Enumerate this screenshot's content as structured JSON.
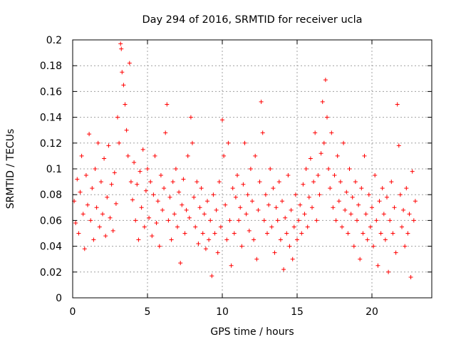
{
  "chart_data": {
    "type": "scatter",
    "title": "Day 294 of 2016, SRMTID for receiver ucla",
    "xlabel": "GPS time / hours",
    "ylabel": "SRMTID / TECUs",
    "xlim": [
      0,
      24
    ],
    "ylim": [
      0,
      0.2
    ],
    "x_ticks": [
      0,
      5,
      10,
      15,
      20
    ],
    "x_tick_labels": [
      "0",
      "5",
      "10",
      "15",
      "20"
    ],
    "y_ticks": [
      0,
      0.02,
      0.04,
      0.06,
      0.08,
      0.1,
      0.12,
      0.14,
      0.16,
      0.18,
      0.2
    ],
    "y_tick_labels": [
      "0",
      "0.02",
      "0.04",
      "0.06",
      "0.08",
      "0.1",
      "0.12",
      "0.14",
      "0.16",
      "0.18",
      "0.2"
    ],
    "grid": true,
    "legend": "none",
    "marker": "plus",
    "series_color": "#ff0000",
    "series": [
      {
        "points": [
          [
            0.1,
            0.075
          ],
          [
            0.2,
            0.058
          ],
          [
            0.3,
            0.092
          ],
          [
            0.4,
            0.05
          ],
          [
            0.5,
            0.082
          ],
          [
            0.6,
            0.11
          ],
          [
            0.7,
            0.065
          ],
          [
            0.8,
            0.038
          ],
          [
            0.9,
            0.095
          ],
          [
            1.0,
            0.072
          ],
          [
            1.1,
            0.127
          ],
          [
            1.2,
            0.06
          ],
          [
            1.3,
            0.085
          ],
          [
            1.4,
            0.045
          ],
          [
            1.5,
            0.1
          ],
          [
            1.6,
            0.07
          ],
          [
            1.7,
            0.12
          ],
          [
            1.8,
            0.055
          ],
          [
            1.9,
            0.09
          ],
          [
            2.0,
            0.065
          ],
          [
            2.1,
            0.108
          ],
          [
            2.2,
            0.048
          ],
          [
            2.3,
            0.078
          ],
          [
            2.4,
            0.118
          ],
          [
            2.5,
            0.062
          ],
          [
            2.6,
            0.088
          ],
          [
            2.7,
            0.052
          ],
          [
            2.8,
            0.097
          ],
          [
            2.9,
            0.073
          ],
          [
            3.0,
            0.14
          ],
          [
            3.1,
            0.12
          ],
          [
            3.2,
            0.197
          ],
          [
            3.25,
            0.193
          ],
          [
            3.3,
            0.175
          ],
          [
            3.4,
            0.165
          ],
          [
            3.5,
            0.15
          ],
          [
            3.6,
            0.13
          ],
          [
            3.7,
            0.11
          ],
          [
            3.8,
            0.182
          ],
          [
            3.9,
            0.09
          ],
          [
            4.0,
            0.076
          ],
          [
            4.1,
            0.105
          ],
          [
            4.2,
            0.06
          ],
          [
            4.3,
            0.088
          ],
          [
            4.4,
            0.045
          ],
          [
            4.5,
            0.098
          ],
          [
            4.6,
            0.07
          ],
          [
            4.7,
            0.115
          ],
          [
            4.8,
            0.055
          ],
          [
            4.9,
            0.083
          ],
          [
            5.0,
            0.1
          ],
          [
            5.1,
            0.062
          ],
          [
            5.2,
            0.09
          ],
          [
            5.3,
            0.048
          ],
          [
            5.4,
            0.08
          ],
          [
            5.5,
            0.11
          ],
          [
            5.6,
            0.058
          ],
          [
            5.7,
            0.075
          ],
          [
            5.8,
            0.04
          ],
          [
            5.9,
            0.095
          ],
          [
            6.0,
            0.068
          ],
          [
            6.1,
            0.085
          ],
          [
            6.2,
            0.128
          ],
          [
            6.3,
            0.15
          ],
          [
            6.4,
            0.06
          ],
          [
            6.5,
            0.078
          ],
          [
            6.6,
            0.045
          ],
          [
            6.7,
            0.09
          ],
          [
            6.8,
            0.065
          ],
          [
            6.9,
            0.1
          ],
          [
            7.0,
            0.055
          ],
          [
            7.1,
            0.082
          ],
          [
            7.2,
            0.027
          ],
          [
            7.3,
            0.072
          ],
          [
            7.4,
            0.092
          ],
          [
            7.5,
            0.05
          ],
          [
            7.6,
            0.068
          ],
          [
            7.7,
            0.11
          ],
          [
            7.8,
            0.062
          ],
          [
            7.9,
            0.14
          ],
          [
            8.0,
            0.12
          ],
          [
            8.1,
            0.078
          ],
          [
            8.2,
            0.055
          ],
          [
            8.3,
            0.09
          ],
          [
            8.4,
            0.042
          ],
          [
            8.5,
            0.07
          ],
          [
            8.6,
            0.085
          ],
          [
            8.7,
            0.05
          ],
          [
            8.8,
            0.065
          ],
          [
            8.9,
            0.038
          ],
          [
            9.0,
            0.075
          ],
          [
            9.1,
            0.045
          ],
          [
            9.2,
            0.06
          ],
          [
            9.3,
            0.017
          ],
          [
            9.4,
            0.08
          ],
          [
            9.5,
            0.05
          ],
          [
            9.6,
            0.068
          ],
          [
            9.7,
            0.035
          ],
          [
            9.8,
            0.09
          ],
          [
            9.9,
            0.055
          ],
          [
            10.0,
            0.138
          ],
          [
            10.1,
            0.11
          ],
          [
            10.2,
            0.072
          ],
          [
            10.3,
            0.045
          ],
          [
            10.4,
            0.12
          ],
          [
            10.5,
            0.06
          ],
          [
            10.6,
            0.025
          ],
          [
            10.7,
            0.085
          ],
          [
            10.8,
            0.05
          ],
          [
            10.9,
            0.078
          ],
          [
            11.0,
            0.095
          ],
          [
            11.1,
            0.06
          ],
          [
            11.2,
            0.07
          ],
          [
            11.3,
            0.04
          ],
          [
            11.4,
            0.088
          ],
          [
            11.5,
            0.12
          ],
          [
            11.6,
            0.065
          ],
          [
            11.7,
            0.08
          ],
          [
            11.8,
            0.052
          ],
          [
            11.9,
            0.1
          ],
          [
            12.0,
            0.075
          ],
          [
            12.1,
            0.045
          ],
          [
            12.2,
            0.11
          ],
          [
            12.3,
            0.03
          ],
          [
            12.4,
            0.068
          ],
          [
            12.5,
            0.09
          ],
          [
            12.6,
            0.152
          ],
          [
            12.7,
            0.128
          ],
          [
            12.8,
            0.06
          ],
          [
            12.9,
            0.08
          ],
          [
            13.0,
            0.05
          ],
          [
            13.1,
            0.072
          ],
          [
            13.2,
            0.1
          ],
          [
            13.3,
            0.055
          ],
          [
            13.4,
            0.085
          ],
          [
            13.5,
            0.035
          ],
          [
            13.6,
            0.07
          ],
          [
            13.7,
            0.06
          ],
          [
            13.8,
            0.09
          ],
          [
            13.9,
            0.045
          ],
          [
            14.0,
            0.075
          ],
          [
            14.1,
            0.022
          ],
          [
            14.2,
            0.062
          ],
          [
            14.3,
            0.05
          ],
          [
            14.4,
            0.095
          ],
          [
            14.5,
            0.04
          ],
          [
            14.6,
            0.068
          ],
          [
            14.7,
            0.03
          ],
          [
            14.8,
            0.055
          ],
          [
            14.9,
            0.08
          ],
          [
            15.0,
            0.045
          ],
          [
            15.1,
            0.06
          ],
          [
            15.2,
            0.072
          ],
          [
            15.3,
            0.05
          ],
          [
            15.4,
            0.088
          ],
          [
            15.5,
            0.065
          ],
          [
            15.6,
            0.1
          ],
          [
            15.7,
            0.055
          ],
          [
            15.8,
            0.078
          ],
          [
            15.9,
            0.108
          ],
          [
            16.0,
            0.07
          ],
          [
            16.1,
            0.09
          ],
          [
            16.2,
            0.128
          ],
          [
            16.3,
            0.06
          ],
          [
            16.4,
            0.095
          ],
          [
            16.5,
            0.08
          ],
          [
            16.6,
            0.112
          ],
          [
            16.7,
            0.152
          ],
          [
            16.8,
            0.12
          ],
          [
            16.9,
            0.169
          ],
          [
            17.0,
            0.14
          ],
          [
            17.1,
            0.1
          ],
          [
            17.2,
            0.085
          ],
          [
            17.3,
            0.128
          ],
          [
            17.4,
            0.07
          ],
          [
            17.5,
            0.095
          ],
          [
            17.6,
            0.06
          ],
          [
            17.7,
            0.11
          ],
          [
            17.8,
            0.075
          ],
          [
            17.9,
            0.09
          ],
          [
            18.0,
            0.055
          ],
          [
            18.1,
            0.12
          ],
          [
            18.2,
            0.068
          ],
          [
            18.3,
            0.082
          ],
          [
            18.4,
            0.05
          ],
          [
            18.5,
            0.1
          ],
          [
            18.6,
            0.065
          ],
          [
            18.7,
            0.078
          ],
          [
            18.8,
            0.04
          ],
          [
            18.9,
            0.09
          ],
          [
            19.0,
            0.06
          ],
          [
            19.1,
            0.072
          ],
          [
            19.2,
            0.03
          ],
          [
            19.3,
            0.085
          ],
          [
            19.4,
            0.05
          ],
          [
            19.5,
            0.11
          ],
          [
            19.6,
            0.065
          ],
          [
            19.7,
            0.045
          ],
          [
            19.8,
            0.08
          ],
          [
            19.9,
            0.055
          ],
          [
            20.0,
            0.07
          ],
          [
            20.1,
            0.04
          ],
          [
            20.2,
            0.095
          ],
          [
            20.3,
            0.06
          ],
          [
            20.4,
            0.025
          ],
          [
            20.5,
            0.075
          ],
          [
            20.6,
            0.05
          ],
          [
            20.7,
            0.085
          ],
          [
            20.8,
            0.065
          ],
          [
            20.9,
            0.045
          ],
          [
            21.0,
            0.078
          ],
          [
            21.1,
            0.02
          ],
          [
            21.2,
            0.06
          ],
          [
            21.3,
            0.09
          ],
          [
            21.4,
            0.05
          ],
          [
            21.5,
            0.07
          ],
          [
            21.6,
            0.035
          ],
          [
            21.7,
            0.15
          ],
          [
            21.8,
            0.118
          ],
          [
            21.9,
            0.08
          ],
          [
            22.0,
            0.055
          ],
          [
            22.1,
            0.068
          ],
          [
            22.2,
            0.04
          ],
          [
            22.3,
            0.085
          ],
          [
            22.4,
            0.05
          ],
          [
            22.5,
            0.065
          ],
          [
            22.6,
            0.016
          ],
          [
            22.7,
            0.098
          ],
          [
            22.8,
            0.06
          ],
          [
            22.9,
            0.075
          ]
        ]
      }
    ]
  }
}
